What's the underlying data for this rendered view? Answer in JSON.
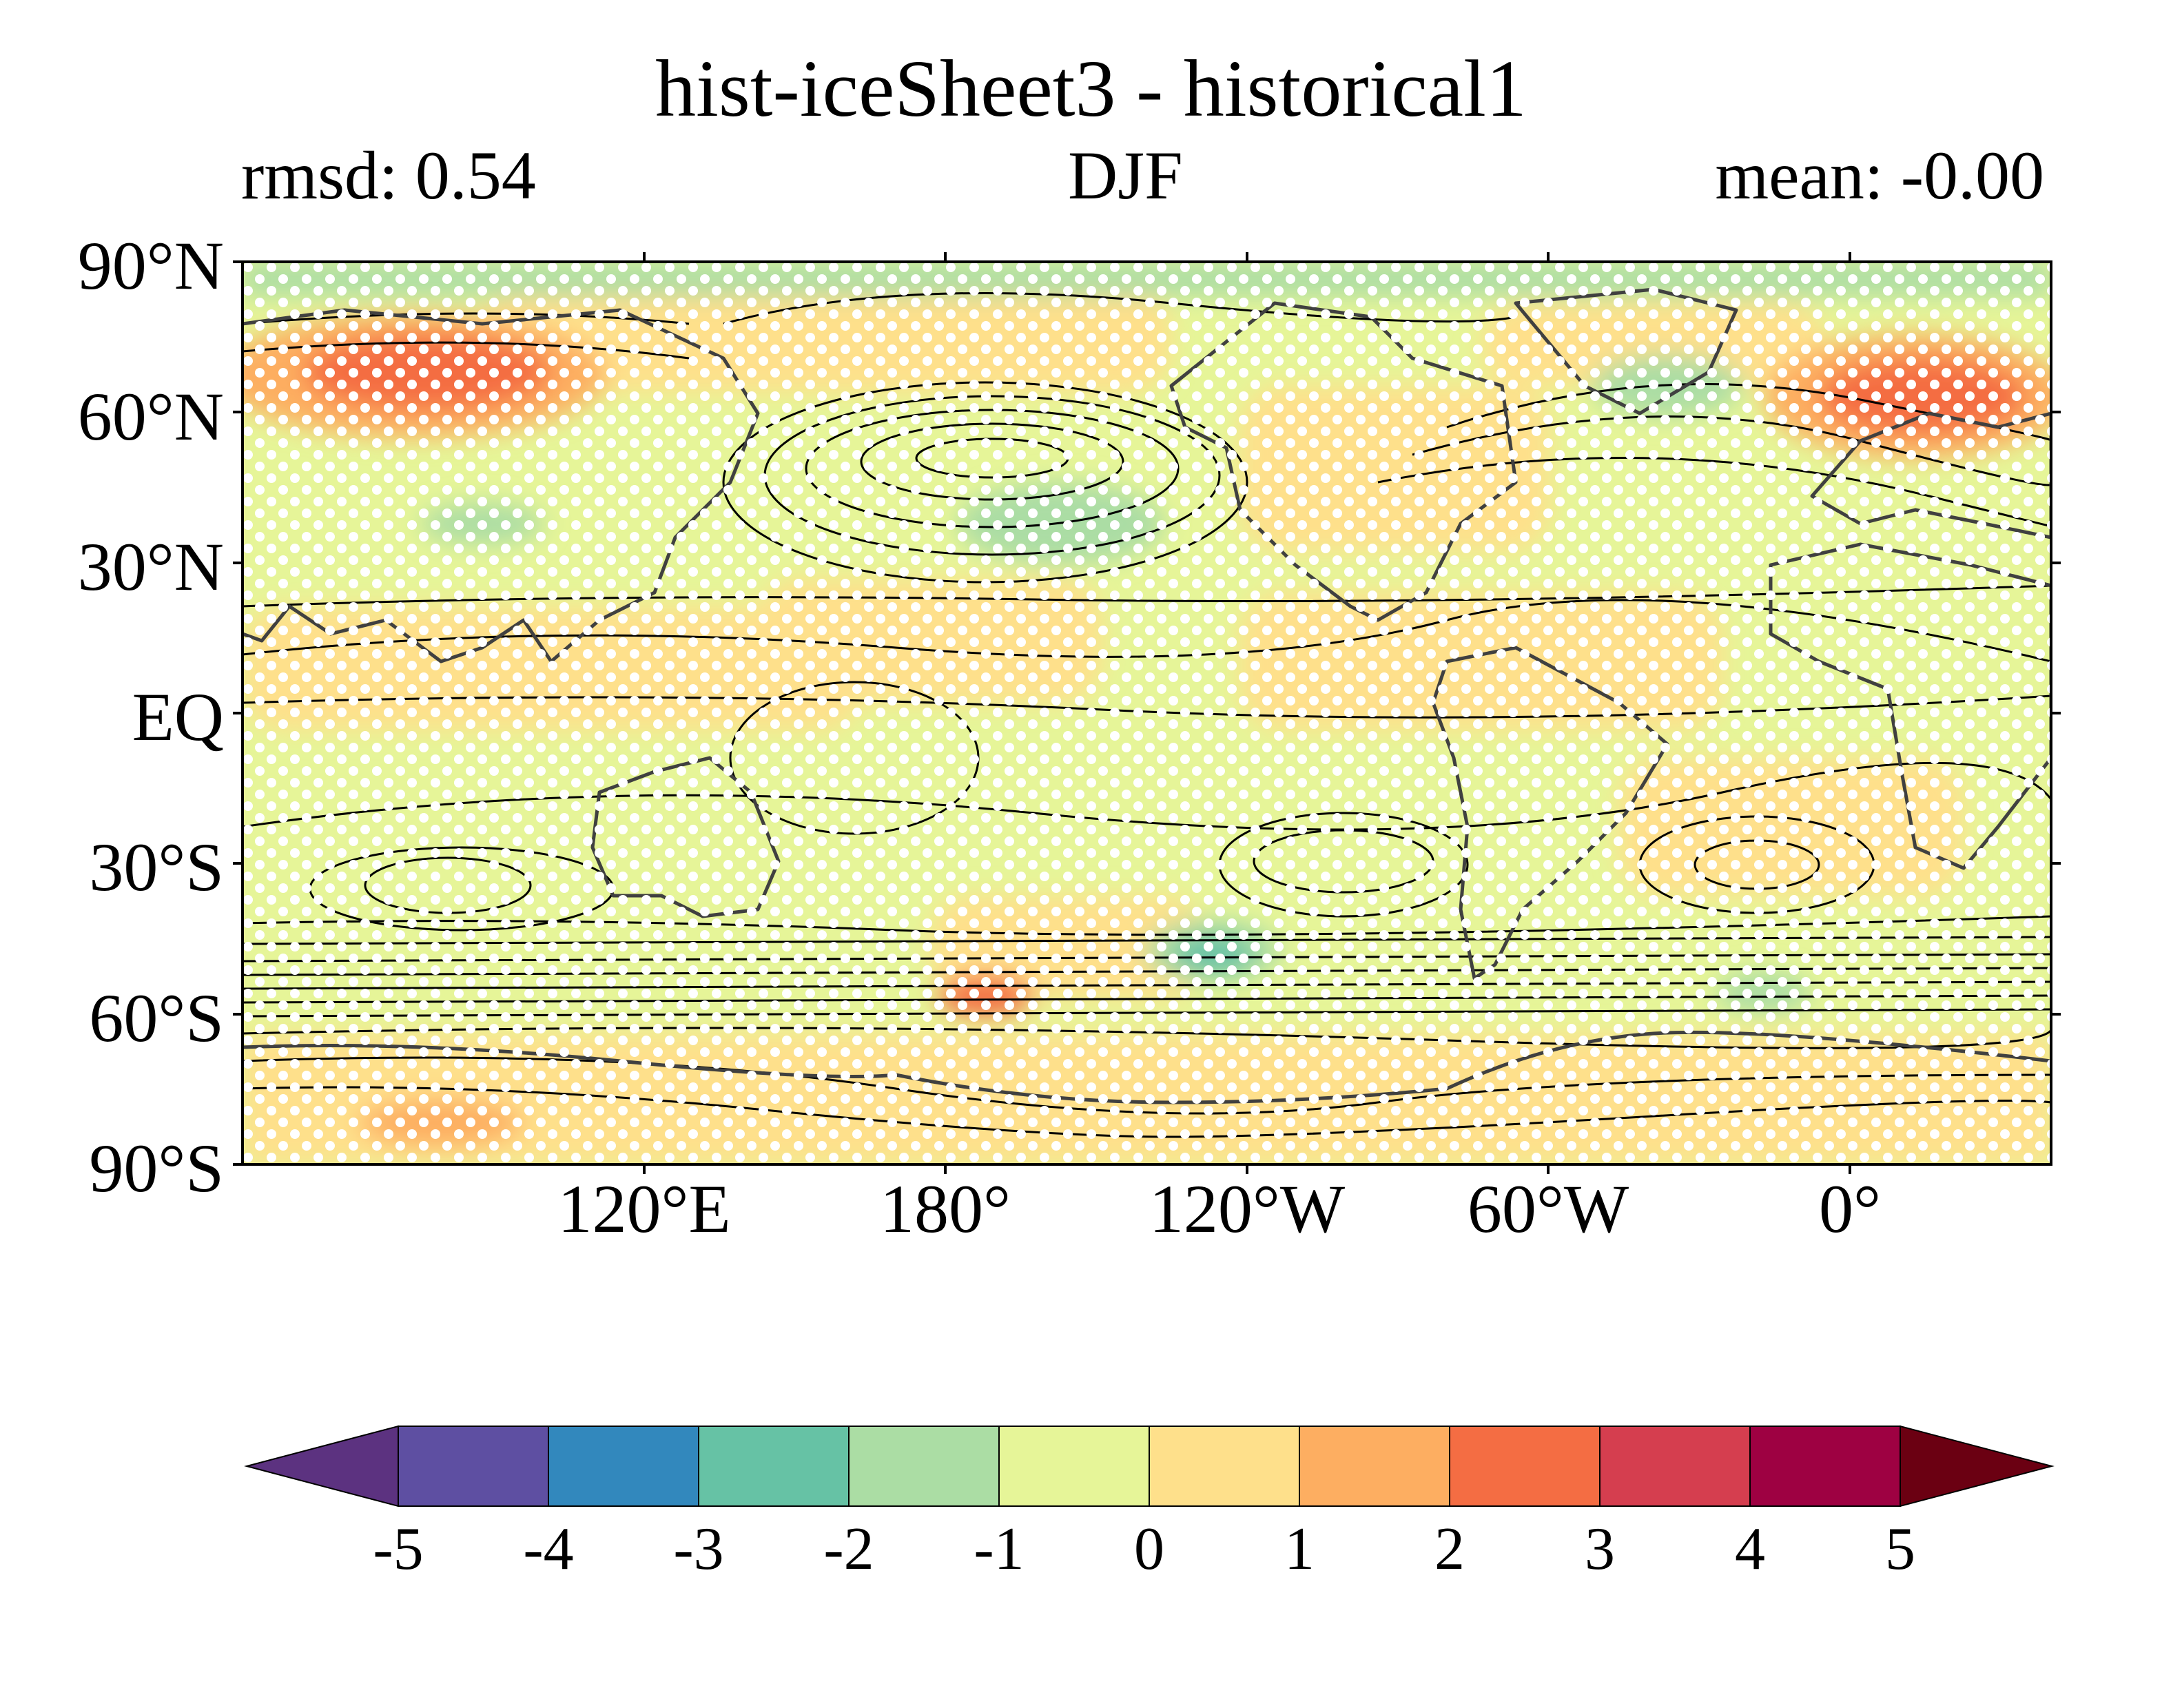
{
  "figure": {
    "title": "hist-iceSheet3 - historical1",
    "rmsd_label": "rmsd: 0.54",
    "season": "DJF",
    "mean_label": "mean: -0.00"
  },
  "map": {
    "projection": "PlateCarree",
    "central_longitude": 155,
    "lat_range": [
      -90,
      90
    ],
    "lon_range": [
      -25,
      335
    ],
    "y_ticks": [
      "90°N",
      "60°N",
      "30°N",
      "EQ",
      "30°S",
      "60°S",
      "90°S"
    ],
    "x_ticks": [
      "120°E",
      "180°",
      "120°W",
      "60°W",
      "0°"
    ],
    "stippling": "white dots over most of the domain",
    "coastlines": true,
    "contours": "black climatology contour lines"
  },
  "colorbar": {
    "levels": [
      -5,
      -4,
      -3,
      -2,
      -1,
      0,
      1,
      2,
      3,
      4,
      5
    ],
    "tick_labels": [
      "-5",
      "-4",
      "-3",
      "-2",
      "-1",
      "0",
      "1",
      "2",
      "3",
      "4",
      "5"
    ],
    "colors": [
      "#5e4fa2",
      "#3288bd",
      "#66c2a5",
      "#abdda4",
      "#e6f598",
      "#fee08b",
      "#fdae61",
      "#f46d43",
      "#d53e4f",
      "#9e0142"
    ],
    "under_color": "#5c3280",
    "over_color": "#6b0012",
    "extend": "both"
  },
  "chart_data": {
    "type": "heatmap",
    "title": "hist-iceSheet3 - historical1",
    "subtitle": "DJF",
    "annotations": [
      "rmsd: 0.54",
      "mean: -0.00"
    ],
    "xlabel": "",
    "ylabel": "",
    "xlim": [
      -25,
      335
    ],
    "ylim": [
      -90,
      90
    ],
    "x_tick_labels": [
      "120°E",
      "180°",
      "120°W",
      "60°W",
      "0°"
    ],
    "y_tick_labels": [
      "90°N",
      "60°N",
      "30°N",
      "EQ",
      "30°S",
      "60°S",
      "90°S"
    ],
    "color_levels": [
      -5,
      -4,
      -3,
      -2,
      -1,
      0,
      1,
      2,
      3,
      4,
      5
    ],
    "anomaly_regions": [
      {
        "region": "northern Eurasia",
        "lon": [
          55,
          110
        ],
        "lat": [
          58,
          75
        ],
        "value": 2.5
      },
      {
        "region": "Scandinavia / North Sea",
        "lon": [
          -10,
          40
        ],
        "lat": [
          52,
          72
        ],
        "value": 2.5
      },
      {
        "region": "North Pacific",
        "lon": [
          170,
          230
        ],
        "lat": [
          22,
          40
        ],
        "value": -1.5
      },
      {
        "region": "Labrador Sea / Greenland",
        "lon": [
          300,
          330
        ],
        "lat": [
          55,
          70
        ],
        "value": -1.5
      },
      {
        "region": "Arctic Ocean",
        "lon": [
          -25,
          335
        ],
        "lat": [
          80,
          90
        ],
        "value": -1.5
      },
      {
        "region": "South Pacific",
        "lon": [
          225,
          250
        ],
        "lat": [
          -52,
          -40
        ],
        "value": -2.5
      },
      {
        "region": "Southern Ocean near 175E",
        "lon": [
          160,
          190
        ],
        "lat": [
          -64,
          -58
        ],
        "value": 2.5
      },
      {
        "region": "Antarctica (East)",
        "lon": [
          -25,
          100
        ],
        "lat": [
          -90,
          -68
        ],
        "value": 1.5
      },
      {
        "region": "Tropical belt",
        "lon": [
          -25,
          335
        ],
        "lat": [
          -20,
          20
        ],
        "value": 0.5
      }
    ]
  }
}
